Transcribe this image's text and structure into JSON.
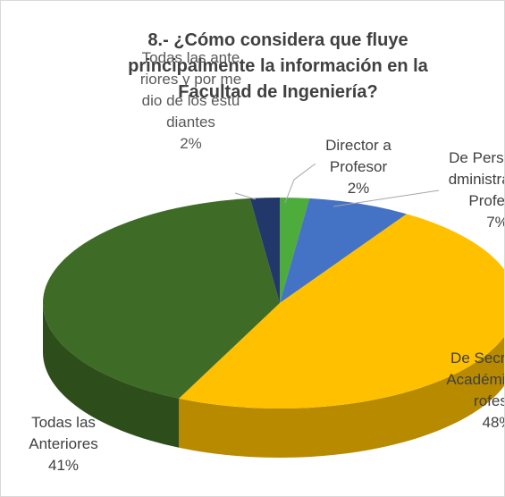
{
  "chart_data": {
    "type": "pie",
    "title": "8.- ¿Cómo considera que fluye principalmente la información en la Facultad de Ingeniería?",
    "categories": [
      "Director a Profesor",
      "De Personal Administrativo a Profesor",
      "De Secretaría Académica a Profesor",
      "Todas las Anteriores",
      "Todas las anteriores y por medio de los estudiantes"
    ],
    "values": [
      2,
      7,
      48,
      41,
      2
    ],
    "value_labels": [
      "2%",
      "7%",
      "48%",
      "41%",
      "2%"
    ],
    "colors": [
      "#4eac3c",
      "#4472c4",
      "#ffc000",
      "#3e6b26",
      "#22386b"
    ]
  }
}
